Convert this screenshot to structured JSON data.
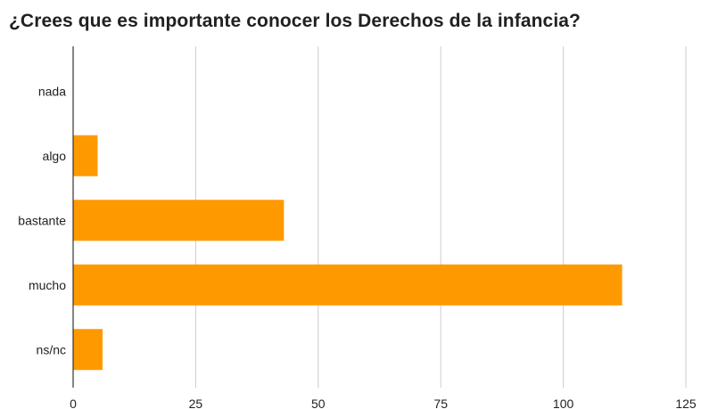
{
  "chart_data": {
    "type": "bar",
    "orientation": "horizontal",
    "title": "¿Crees que es importante conocer los Derechos de la infancia?",
    "categories": [
      "nada",
      "algo",
      "bastante",
      "mucho",
      "ns/nc"
    ],
    "values": [
      0,
      5,
      43,
      112,
      6
    ],
    "xlim": [
      0,
      125
    ],
    "x_ticks": [
      0,
      25,
      50,
      75,
      100,
      125
    ],
    "x_tick_labels": [
      "0",
      "25",
      "50",
      "75",
      "100",
      "125"
    ],
    "xlabel": "",
    "ylabel": "",
    "grid": true,
    "legend": "none",
    "bar_color": "#ff9900"
  }
}
